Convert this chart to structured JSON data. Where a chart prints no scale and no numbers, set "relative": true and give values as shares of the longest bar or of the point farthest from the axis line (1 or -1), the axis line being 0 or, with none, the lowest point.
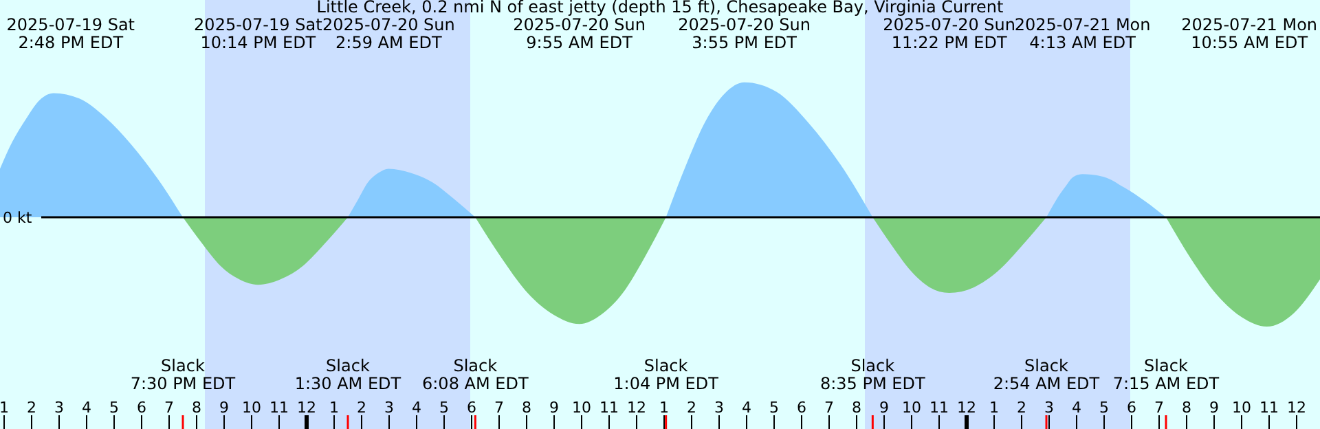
{
  "chart_data": {
    "type": "area",
    "title": "Little Creek, 0.2 nmi N of east jetty (depth 15 ft), Chesapeake Bay, Virginia Current",
    "relative": true,
    "x": [
      "2025-07-19T12:51",
      "2025-07-19T13:18",
      "2025-07-19T13:48",
      "2025-07-19T14:18",
      "2025-07-19T14:48",
      "2025-07-19T15:44",
      "2025-07-19T16:41",
      "2025-07-19T17:37",
      "2025-07-19T18:34",
      "2025-07-19T19:30",
      "2025-07-19T20:11",
      "2025-07-19T20:52",
      "2025-07-19T21:33",
      "2025-07-19T22:14",
      "2025-07-19T23:03",
      "2025-07-19T23:52",
      "2025-07-20T00:41",
      "2025-07-20T01:30",
      "2025-07-20T01:52",
      "2025-07-20T02:14",
      "2025-07-20T02:37",
      "2025-07-20T02:59",
      "2025-07-20T03:46",
      "2025-07-20T04:34",
      "2025-07-20T05:20",
      "2025-07-20T06:08",
      "2025-07-20T07:05",
      "2025-07-20T08:02",
      "2025-07-20T08:58",
      "2025-07-20T09:55",
      "2025-07-20T10:43",
      "2025-07-20T11:30",
      "2025-07-20T12:17",
      "2025-07-20T13:04",
      "2025-07-20T13:47",
      "2025-07-20T14:30",
      "2025-07-20T15:13",
      "2025-07-20T15:55",
      "2025-07-20T17:05",
      "2025-07-20T18:15",
      "2025-07-20T19:25",
      "2025-07-20T20:35",
      "2025-07-20T21:17",
      "2025-07-20T21:59",
      "2025-07-20T22:40",
      "2025-07-20T23:22",
      "2025-07-21T00:15",
      "2025-07-21T01:08",
      "2025-07-21T02:01",
      "2025-07-21T02:54",
      "2025-07-21T03:14",
      "2025-07-21T03:34",
      "2025-07-21T03:53",
      "2025-07-21T04:13",
      "2025-07-21T04:59",
      "2025-07-21T05:44",
      "2025-07-21T06:29",
      "2025-07-21T07:15",
      "2025-07-21T08:10",
      "2025-07-21T09:05",
      "2025-07-21T10:00",
      "2025-07-21T10:55",
      "2025-07-21T11:54",
      "2025-07-21T12:51"
    ],
    "series": [
      {
        "color": "#87cbff",
        "values": [
          0.36,
          0.56,
          0.73,
          0.87,
          0.92,
          0.88,
          0.74,
          0.54,
          0.29,
          0,
          null,
          null,
          null,
          null,
          null,
          null,
          null,
          0,
          0.13,
          0.26,
          0.33,
          0.36,
          0.33,
          0.26,
          0.14,
          0,
          null,
          null,
          null,
          null,
          null,
          null,
          null,
          0,
          0.38,
          0.71,
          0.92,
          1,
          0.93,
          0.7,
          0.39,
          0,
          null,
          null,
          null,
          null,
          null,
          null,
          null,
          0,
          0.12,
          0.22,
          0.3,
          0.32,
          0.3,
          0.22,
          0.12,
          0,
          null,
          null,
          null,
          null,
          null,
          null
        ]
      },
      {
        "color": "#7dce7d",
        "values": [
          null,
          null,
          null,
          null,
          null,
          null,
          null,
          null,
          null,
          0,
          -0.19,
          -0.36,
          -0.46,
          -0.5,
          -0.46,
          -0.36,
          -0.19,
          0,
          null,
          null,
          null,
          null,
          null,
          null,
          null,
          0,
          -0.3,
          -0.56,
          -0.72,
          -0.79,
          -0.72,
          -0.56,
          -0.3,
          0,
          null,
          null,
          null,
          null,
          null,
          null,
          null,
          0,
          -0.21,
          -0.4,
          -0.52,
          -0.56,
          -0.52,
          -0.4,
          -0.21,
          0,
          null,
          null,
          null,
          null,
          null,
          null,
          null,
          0,
          -0.31,
          -0.57,
          -0.74,
          -0.81,
          -0.71,
          -0.46
        ]
      }
    ],
    "xlim": [
      "2025-07-19T12:51",
      "2025-07-21T12:51"
    ],
    "xticks": [
      {
        "value": "2025-07-19T13:00",
        "label": "1"
      },
      {
        "value": "2025-07-19T14:00",
        "label": "2"
      },
      {
        "value": "2025-07-19T15:00",
        "label": "3"
      },
      {
        "value": "2025-07-19T16:00",
        "label": "4"
      },
      {
        "value": "2025-07-19T17:00",
        "label": "5"
      },
      {
        "value": "2025-07-19T18:00",
        "label": "6"
      },
      {
        "value": "2025-07-19T19:00",
        "label": "7"
      },
      {
        "value": "2025-07-19T20:00",
        "label": "8"
      },
      {
        "value": "2025-07-19T21:00",
        "label": "9"
      },
      {
        "value": "2025-07-19T22:00",
        "label": "10"
      },
      {
        "value": "2025-07-19T23:00",
        "label": "11"
      },
      {
        "value": "2025-07-20T00:00",
        "label": "12"
      },
      {
        "value": "2025-07-20T01:00",
        "label": "1"
      },
      {
        "value": "2025-07-20T02:00",
        "label": "2"
      },
      {
        "value": "2025-07-20T03:00",
        "label": "3"
      },
      {
        "value": "2025-07-20T04:00",
        "label": "4"
      },
      {
        "value": "2025-07-20T05:00",
        "label": "5"
      },
      {
        "value": "2025-07-20T06:00",
        "label": "6"
      },
      {
        "value": "2025-07-20T07:00",
        "label": "7"
      },
      {
        "value": "2025-07-20T08:00",
        "label": "8"
      },
      {
        "value": "2025-07-20T09:00",
        "label": "9"
      },
      {
        "value": "2025-07-20T10:00",
        "label": "10"
      },
      {
        "value": "2025-07-20T11:00",
        "label": "11"
      },
      {
        "value": "2025-07-20T12:00",
        "label": "12"
      },
      {
        "value": "2025-07-20T13:00",
        "label": "1"
      },
      {
        "value": "2025-07-20T14:00",
        "label": "2"
      },
      {
        "value": "2025-07-20T15:00",
        "label": "3"
      },
      {
        "value": "2025-07-20T16:00",
        "label": "4"
      },
      {
        "value": "2025-07-20T17:00",
        "label": "5"
      },
      {
        "value": "2025-07-20T18:00",
        "label": "6"
      },
      {
        "value": "2025-07-20T19:00",
        "label": "7"
      },
      {
        "value": "2025-07-20T20:00",
        "label": "8"
      },
      {
        "value": "2025-07-20T21:00",
        "label": "9"
      },
      {
        "value": "2025-07-20T22:00",
        "label": "10"
      },
      {
        "value": "2025-07-20T23:00",
        "label": "11"
      },
      {
        "value": "2025-07-21T00:00",
        "label": "12"
      },
      {
        "value": "2025-07-21T01:00",
        "label": "1"
      },
      {
        "value": "2025-07-21T02:00",
        "label": "2"
      },
      {
        "value": "2025-07-21T03:00",
        "label": "3"
      },
      {
        "value": "2025-07-21T04:00",
        "label": "4"
      },
      {
        "value": "2025-07-21T05:00",
        "label": "5"
      },
      {
        "value": "2025-07-21T06:00",
        "label": "6"
      },
      {
        "value": "2025-07-21T07:00",
        "label": "7"
      },
      {
        "value": "2025-07-21T08:00",
        "label": "8"
      },
      {
        "value": "2025-07-21T09:00",
        "label": "9"
      },
      {
        "value": "2025-07-21T10:00",
        "label": "10"
      },
      {
        "value": "2025-07-21T11:00",
        "label": "11"
      },
      {
        "value": "2025-07-21T12:00",
        "label": "12"
      }
    ],
    "bands": [
      {
        "axis": "x",
        "from": "2025-07-19T20:18",
        "to": "2025-07-20T05:57",
        "color": "#cce0ff"
      },
      {
        "axis": "x",
        "from": "2025-07-20T20:18",
        "to": "2025-07-21T05:57",
        "color": "#cce0ff"
      }
    ],
    "ref_lines": [
      {
        "axis": "y",
        "value": 0,
        "label": "0 kt",
        "color": "#000000"
      }
    ],
    "annotations": [
      "2025-07-19 Sat\n2:48 PM EDT",
      "2025-07-19 Sat\n10:14 PM EDT",
      "2025-07-20 Sun\n2:59 AM EDT",
      "2025-07-20 Sun\n9:55 AM EDT",
      "2025-07-20 Sun\n3:55 PM EDT",
      "2025-07-20 Sun\n11:22 PM EDT",
      "2025-07-21 Mon\n4:13 AM EDT",
      "2025-07-21 Mon\n10:55 AM EDT",
      "Slack\n7:30 PM EDT",
      "Slack\n1:30 AM EDT",
      "Slack\n6:08 AM EDT",
      "Slack\n1:04 PM EDT",
      "Slack\n8:35 PM EDT",
      "Slack\n2:54 AM EDT",
      "Slack\n7:15 AM EDT"
    ]
  }
}
